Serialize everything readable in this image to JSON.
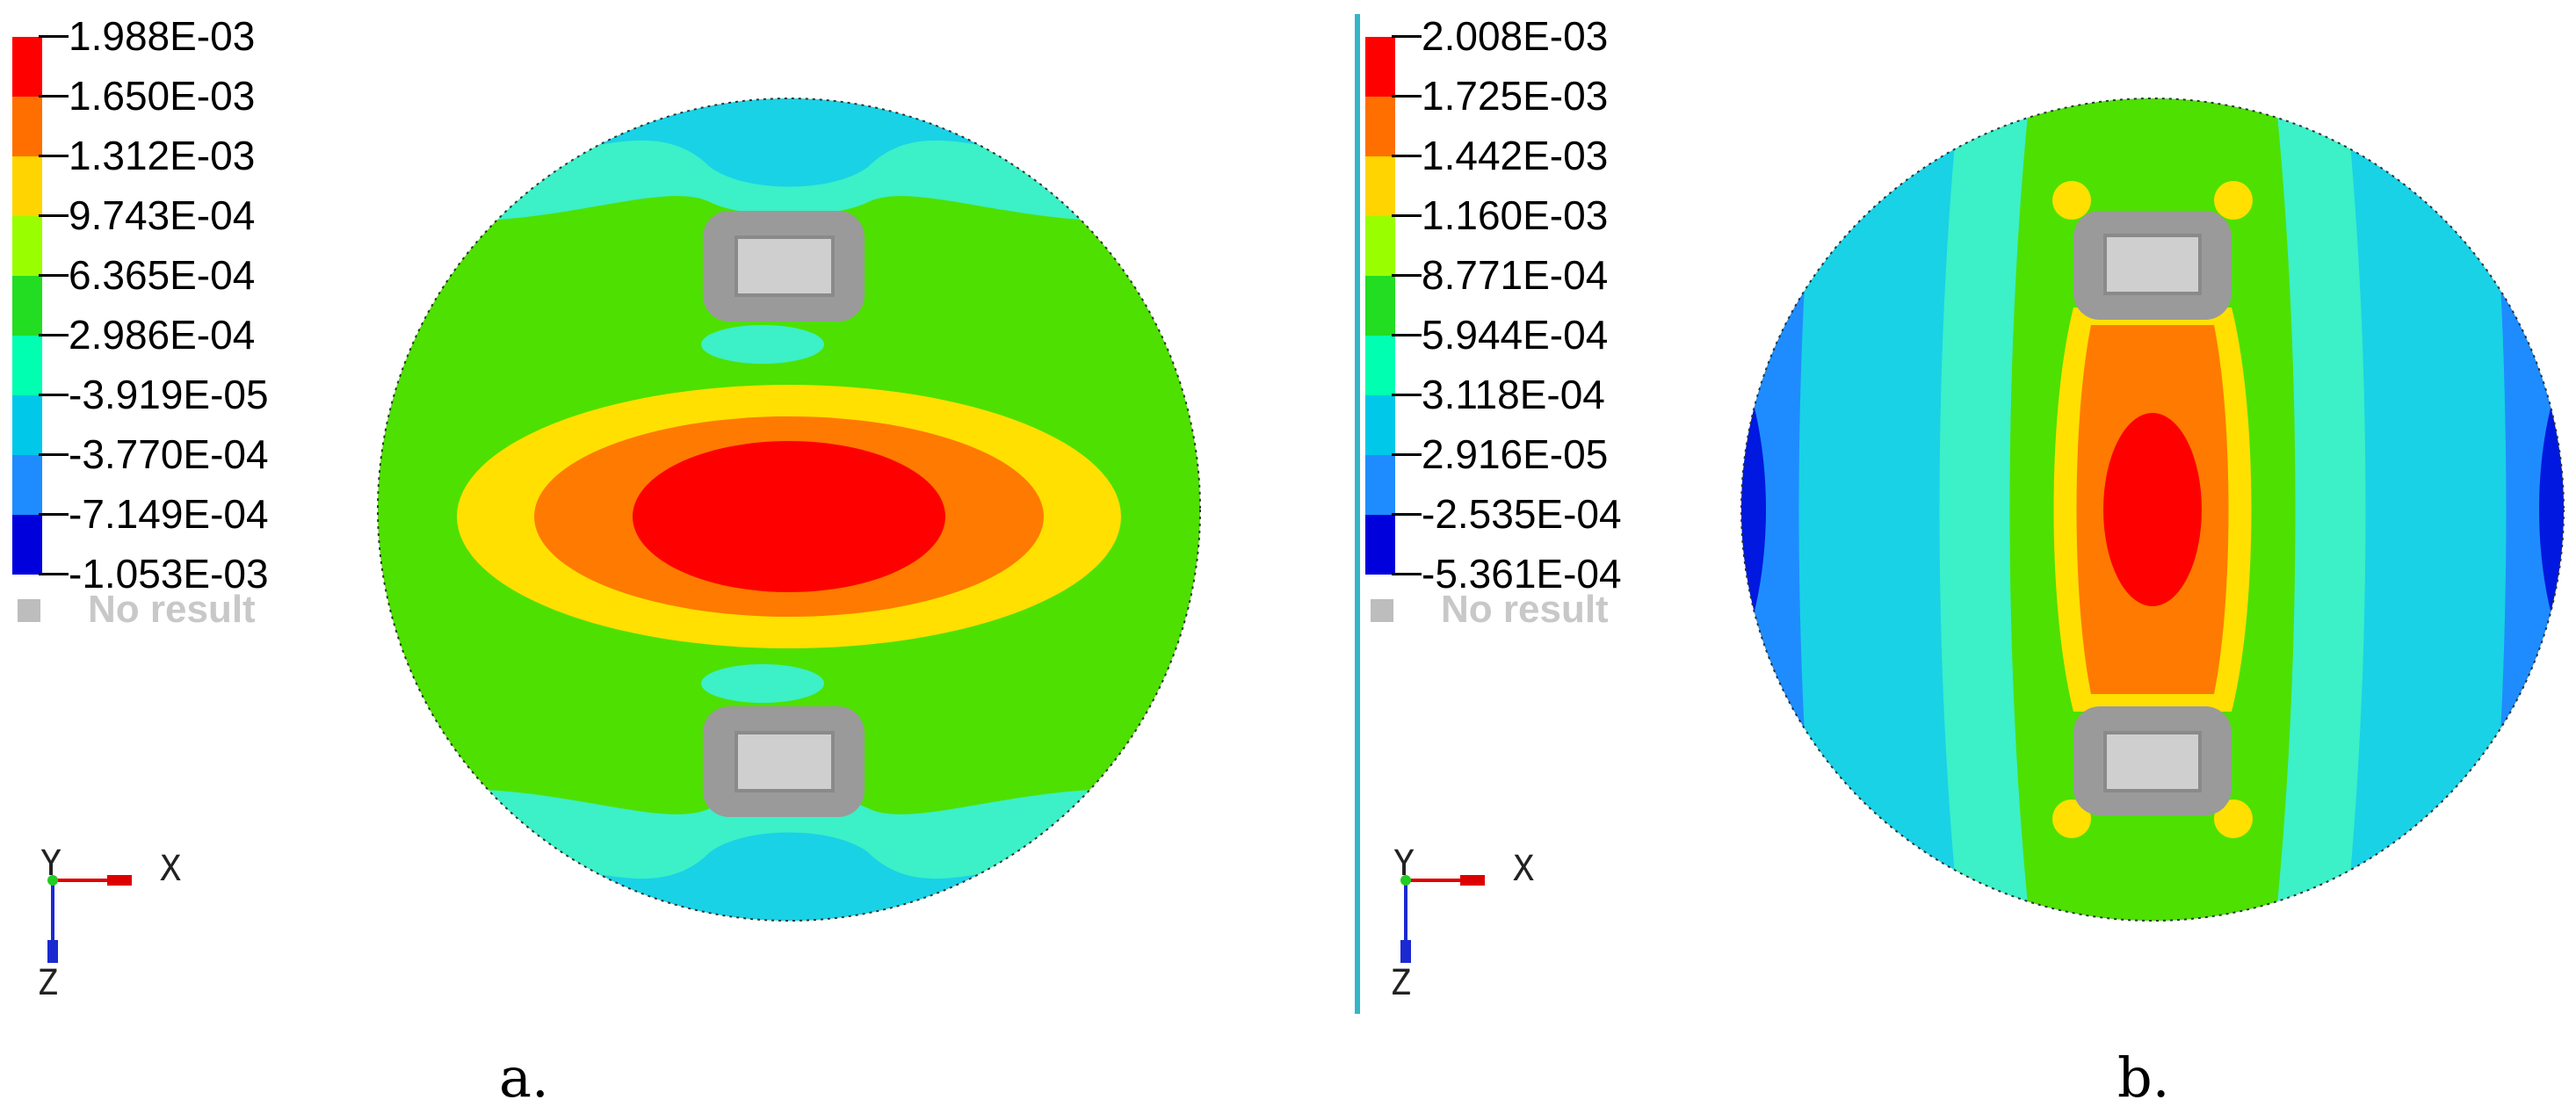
{
  "panels": [
    {
      "caption": "a.",
      "legend_values": [
        "1.988E-03",
        "1.650E-03",
        "1.312E-03",
        "9.743E-04",
        "6.365E-04",
        "2.986E-04",
        "-3.919E-05",
        "-3.770E-04",
        "-7.149E-04",
        "-1.053E-03"
      ],
      "no_result_label": "No result",
      "axis_labels": {
        "y": "Y",
        "x": "X",
        "z": "Z"
      }
    },
    {
      "caption": "b.",
      "legend_values": [
        "2.008E-03",
        "1.725E-03",
        "1.442E-03",
        "1.160E-03",
        "8.771E-04",
        "5.944E-04",
        "3.118E-04",
        "2.916E-05",
        "-2.535E-04",
        "-5.361E-04"
      ],
      "no_result_label": "No result",
      "axis_labels": {
        "y": "Y",
        "x": "X",
        "z": "Z"
      }
    }
  ],
  "legend_colors": [
    "#ff0000",
    "#ff6f00",
    "#ffd400",
    "#99ff00",
    "#22dd22",
    "#00ffb0",
    "#00c8e8",
    "#1e8cff",
    "#0000dd"
  ],
  "contour_colors": {
    "red": "#ff0000",
    "orange": "#ff7a00",
    "yellow": "#ffe000",
    "green": "#4ee000",
    "mint": "#3cf0c8",
    "cyan": "#19d2e6",
    "blue": "#1e8cff",
    "darkblue": "#0018e0",
    "plate_outer": "#9a9a9a",
    "plate_inner": "#cfcfcf"
  }
}
